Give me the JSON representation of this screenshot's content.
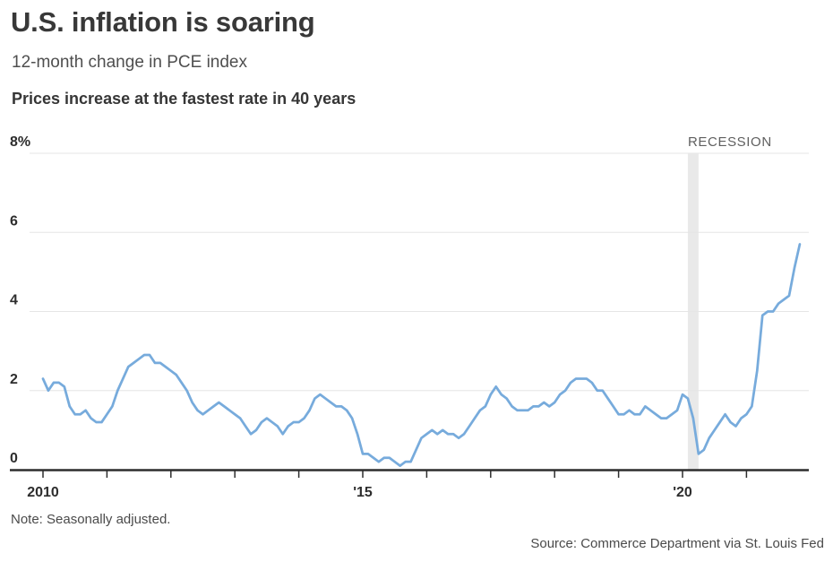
{
  "header": {
    "title": "U.S. inflation is soaring",
    "subtitle": "12-month change in PCE index",
    "deck": "Prices increase at the fastest rate in 40 years"
  },
  "footer": {
    "note": "Note: Seasonally adjusted.",
    "source": "Source: Commerce Department via St. Louis Fed"
  },
  "colors": {
    "line": "#77abdc",
    "grid": "#e6e6e6",
    "axis": "#2d2d2d",
    "tick_label": "#2d2d2d",
    "recession_band": "#e9e9e9",
    "recession_text": "#5f5f5f",
    "title_text": "#383838",
    "note_text": "#4a4a4a"
  },
  "chart_data": {
    "type": "line",
    "title": "U.S. inflation is soaring",
    "subtitle": "12-month change in PCE index",
    "annotation": "Prices increase at the fastest rate in 40 years",
    "unit": "%",
    "frequency": "monthly",
    "x_start": "2010-01",
    "x_end": "2021-11",
    "ylim": [
      0,
      8
    ],
    "grid": "horizontal",
    "legend": "none",
    "y_ticks": [
      {
        "value": 8,
        "label": "8%"
      },
      {
        "value": 6,
        "label": "6"
      },
      {
        "value": 4,
        "label": "4"
      },
      {
        "value": 2,
        "label": "2"
      },
      {
        "value": 0,
        "label": "0"
      }
    ],
    "x_ticks": [
      {
        "year": 2010,
        "label": "2010"
      },
      {
        "year": 2011,
        "label": ""
      },
      {
        "year": 2012,
        "label": ""
      },
      {
        "year": 2013,
        "label": ""
      },
      {
        "year": 2014,
        "label": ""
      },
      {
        "year": 2015,
        "label": "'15"
      },
      {
        "year": 2016,
        "label": ""
      },
      {
        "year": 2017,
        "label": ""
      },
      {
        "year": 2018,
        "label": ""
      },
      {
        "year": 2019,
        "label": ""
      },
      {
        "year": 2020,
        "label": "'20"
      },
      {
        "year": 2021,
        "label": ""
      }
    ],
    "recession_band": {
      "label": "RECESSION",
      "start": "2020-02",
      "end": "2020-04"
    },
    "series": [
      {
        "name": "12-month change in PCE index",
        "color": "#77abdc",
        "start": "2010-01",
        "values": [
          2.3,
          2.0,
          2.2,
          2.2,
          2.1,
          1.6,
          1.4,
          1.4,
          1.5,
          1.3,
          1.2,
          1.2,
          1.4,
          1.6,
          2.0,
          2.3,
          2.6,
          2.7,
          2.8,
          2.9,
          2.9,
          2.7,
          2.7,
          2.6,
          2.5,
          2.4,
          2.2,
          2.0,
          1.7,
          1.5,
          1.4,
          1.5,
          1.6,
          1.7,
          1.6,
          1.5,
          1.4,
          1.3,
          1.1,
          0.9,
          1.0,
          1.2,
          1.3,
          1.2,
          1.1,
          0.9,
          1.1,
          1.2,
          1.2,
          1.3,
          1.5,
          1.8,
          1.9,
          1.8,
          1.7,
          1.6,
          1.6,
          1.5,
          1.3,
          0.9,
          0.4,
          0.4,
          0.3,
          0.2,
          0.3,
          0.3,
          0.2,
          0.1,
          0.2,
          0.2,
          0.5,
          0.8,
          0.9,
          1.0,
          0.9,
          1.0,
          0.9,
          0.9,
          0.8,
          0.9,
          1.1,
          1.3,
          1.5,
          1.6,
          1.9,
          2.1,
          1.9,
          1.8,
          1.6,
          1.5,
          1.5,
          1.5,
          1.6,
          1.6,
          1.7,
          1.6,
          1.7,
          1.9,
          2.0,
          2.2,
          2.3,
          2.3,
          2.3,
          2.2,
          2.0,
          2.0,
          1.8,
          1.6,
          1.4,
          1.4,
          1.5,
          1.4,
          1.4,
          1.6,
          1.5,
          1.4,
          1.3,
          1.3,
          1.4,
          1.5,
          1.9,
          1.8,
          1.3,
          0.4,
          0.5,
          0.8,
          1.0,
          1.2,
          1.4,
          1.2,
          1.1,
          1.3,
          1.4,
          1.6,
          2.5,
          3.9,
          4.0,
          4.0,
          4.2,
          4.3,
          4.4,
          5.1,
          5.7
        ]
      }
    ]
  }
}
